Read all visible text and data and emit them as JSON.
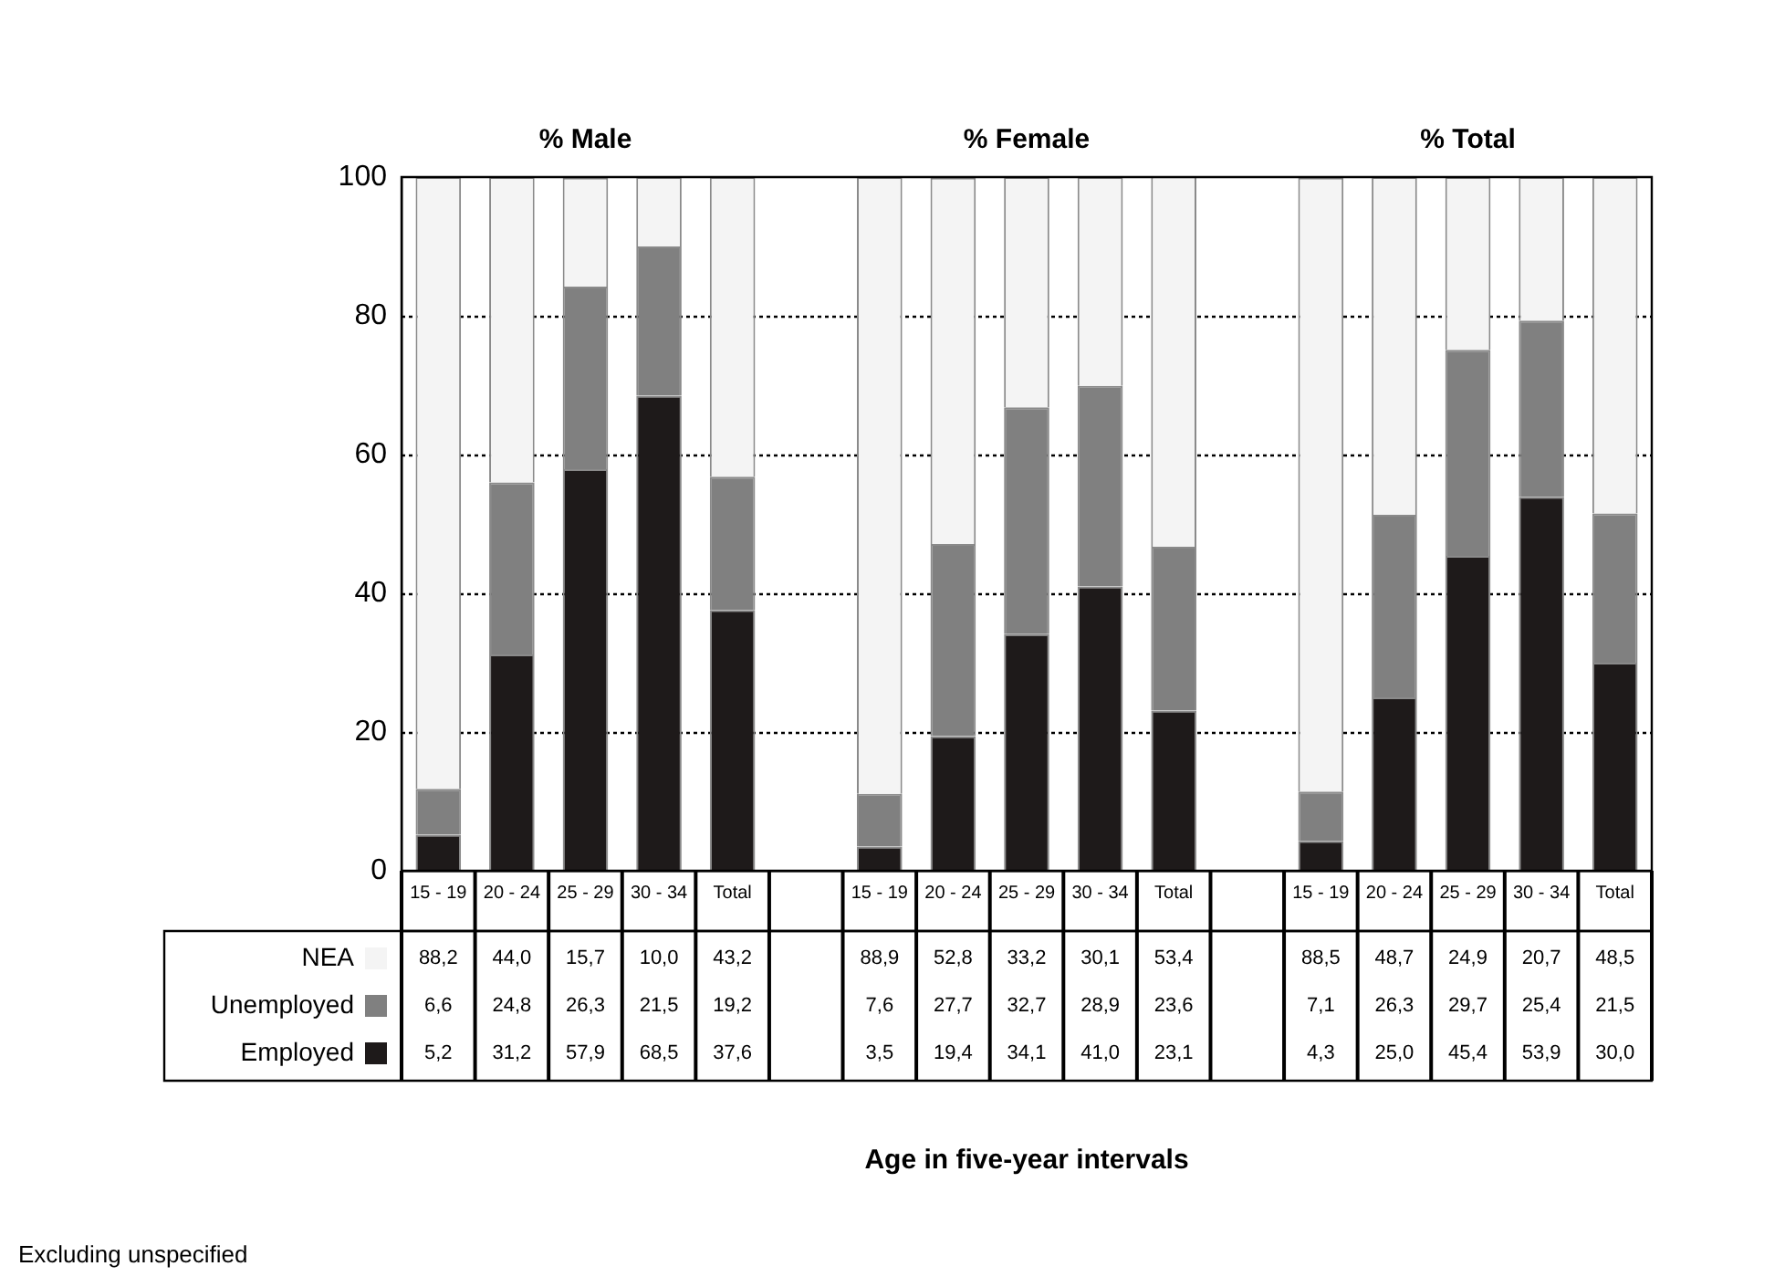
{
  "chart_data": {
    "type": "bar",
    "stacked": true,
    "categories": [
      "15 - 19",
      "20 - 24",
      "25 - 29",
      "30 - 34",
      "Total",
      null,
      "15 - 19",
      "20 - 24",
      "25 - 29",
      "30 - 34",
      "Total",
      null,
      "15 - 19",
      "20 - 24",
      "25 - 29",
      "30 - 34",
      "Total"
    ],
    "series": [
      {
        "name": "Employed",
        "color": "#1e1a1a",
        "values": [
          5.2,
          31.2,
          57.9,
          68.5,
          37.6,
          null,
          3.5,
          19.4,
          34.1,
          41.0,
          23.1,
          null,
          4.3,
          25.0,
          45.4,
          53.9,
          30.0
        ],
        "value_labels": [
          "5,2",
          "31,2",
          "57,9",
          "68,5",
          "37,6",
          null,
          "3,5",
          "19,4",
          "34,1",
          "41,0",
          "23,1",
          null,
          "4,3",
          "25,0",
          "45,4",
          "53,9",
          "30,0"
        ]
      },
      {
        "name": "Unemployed",
        "color": "#808080",
        "values": [
          6.6,
          24.8,
          26.3,
          21.5,
          19.2,
          null,
          7.6,
          27.7,
          32.7,
          28.9,
          23.6,
          null,
          7.1,
          26.3,
          29.7,
          25.4,
          21.5
        ],
        "value_labels": [
          "6,6",
          "24,8",
          "26,3",
          "21,5",
          "19,2",
          null,
          "7,6",
          "27,7",
          "32,7",
          "28,9",
          "23,6",
          null,
          "7,1",
          "26,3",
          "29,7",
          "25,4",
          "21,5"
        ]
      },
      {
        "name": "NEA",
        "color": "#f4f4f4",
        "values": [
          88.2,
          44.0,
          15.7,
          10.0,
          43.2,
          null,
          88.9,
          52.8,
          33.2,
          30.1,
          53.4,
          null,
          88.5,
          48.7,
          24.9,
          20.7,
          48.5
        ],
        "value_labels": [
          "88,2",
          "44,0",
          "15,7",
          "10,0",
          "43,2",
          null,
          "88,9",
          "52,8",
          "33,2",
          "30,1",
          "53,4",
          null,
          "88,5",
          "48,7",
          "24,9",
          "20,7",
          "48,5"
        ]
      }
    ],
    "ylim": [
      0,
      100
    ],
    "yticks": [
      0,
      20,
      40,
      60,
      80,
      100
    ],
    "grid": "y",
    "legend": "bottom left",
    "annotations": [
      "% Male",
      "% Female",
      "% Total",
      "Age in five-year intervals",
      "Excluding unspecified"
    ]
  }
}
